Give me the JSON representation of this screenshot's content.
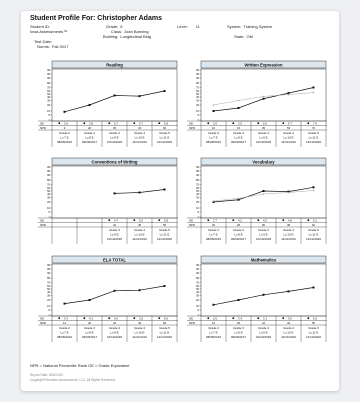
{
  "report": {
    "title": "Student Profile For: Christopher Adams",
    "student_id_label": "Student ID:",
    "assessment_label": "Iowa Assessments™",
    "test_date_label": "Test Date:",
    "norms_label": "Norms:",
    "norms_value": "Fall 2017",
    "grade_label": "Grade:",
    "grade_value": "5",
    "class_label": "Class:",
    "class_value": "Joan Banning",
    "building_label": "Building:",
    "building_value": "Longitudinal Bldg",
    "level_label": "Level:",
    "level_value": "11",
    "system_label": "System:",
    "system_value": "Training System",
    "state_label": "State:",
    "state_value": "OM"
  },
  "chart_data": [
    {
      "type": "line",
      "title": "Reading",
      "y_axis_ticks": [
        "99",
        "95",
        "90",
        "80",
        "70",
        "60",
        "50",
        "40",
        "30",
        "20",
        "10",
        "5",
        "1"
      ],
      "series": [
        {
          "values": [
            9,
            20,
            45,
            43,
            60
          ]
        }
      ],
      "ge": [
        "2.9",
        "3.8",
        "5.7",
        "5.7",
        "6.8"
      ],
      "npr": [
        "9",
        "20",
        "45",
        "43",
        "60"
      ],
      "columns": [
        {
          "grade": "Grade 2",
          "level": "Lv.7 E",
          "date": "08/08/2016"
        },
        {
          "grade": "Grade 3",
          "level": "Lv.8 E",
          "date": "09/09/2017"
        },
        {
          "grade": "Grade 4",
          "level": "Lv.9 E",
          "date": "10/10/2018"
        },
        {
          "grade": "Grade 4",
          "level": "Lv.10 E",
          "date": "11/11/2019"
        },
        {
          "grade": "Grade 5",
          "level": "Lv.11 E",
          "date": "12/12/2020"
        }
      ]
    },
    {
      "type": "line",
      "title": "Written Expression",
      "y_axis_ticks": [
        "99",
        "95",
        "90",
        "80",
        "70",
        "60",
        "50",
        "40",
        "30",
        "20",
        "10",
        "5",
        "1"
      ],
      "series": [
        {
          "values": [
            10,
            15,
            35,
            53,
            70
          ]
        },
        {
          "values": [
            20,
            30,
            42,
            48,
            55
          ]
        }
      ],
      "ge": [
        "3.0",
        "3.9",
        "5.6",
        "5.7",
        "7.4"
      ],
      "npr": [
        "10",
        "15",
        "35",
        "53",
        "70"
      ],
      "columns": [
        {
          "grade": "Grade 2",
          "level": "Lv.7 E",
          "date": "08/08/2016"
        },
        {
          "grade": "Grade 3",
          "level": "Lv.8 E",
          "date": "09/09/2017"
        },
        {
          "grade": "Grade 4",
          "level": "Lv.9 E",
          "date": "10/10/2018"
        },
        {
          "grade": "Grade 4",
          "level": "Lv.10 E",
          "date": "11/11/2019"
        },
        {
          "grade": "Grade 5",
          "level": "Lv.11 E",
          "date": "12/12/2020"
        }
      ]
    },
    {
      "type": "line",
      "title": "Conventions of Writing",
      "y_axis_ticks": [
        "99",
        "95",
        "90",
        "80",
        "70",
        "60",
        "50",
        "40",
        "30",
        "20",
        "10",
        "5",
        "1"
      ],
      "series": [
        {
          "values": [
            null,
            null,
            42,
            45,
            55
          ]
        }
      ],
      "ge": [
        "",
        "",
        "4.7",
        "5.6",
        "5.8"
      ],
      "npr": [
        "",
        "",
        "42",
        "45",
        "55"
      ],
      "columns": [
        {
          "grade": "",
          "level": "",
          "date": ""
        },
        {
          "grade": "",
          "level": "",
          "date": ""
        },
        {
          "grade": "Grade 3",
          "level": "Lv.9 E",
          "date": "10/10/2018"
        },
        {
          "grade": "Grade 4",
          "level": "Lv.10 E",
          "date": "11/11/2019"
        },
        {
          "grade": "Grade 5",
          "level": "Lv.11 E",
          "date": "12/12/2020"
        }
      ]
    },
    {
      "type": "line",
      "title": "Vocabulary",
      "y_axis_ticks": [
        "99",
        "95",
        "90",
        "80",
        "70",
        "60",
        "50",
        "40",
        "30",
        "20",
        "10",
        "5",
        "1"
      ],
      "series": [
        {
          "values": [
            20,
            25,
            50,
            48,
            62
          ]
        },
        {
          "values": [
            22,
            28,
            40,
            45,
            52
          ]
        }
      ],
      "ge": [
        "2.7",
        "4.2",
        "4.2",
        "4.8",
        "6.1"
      ],
      "npr": [
        "20",
        "25",
        "50",
        "48",
        "62"
      ],
      "columns": [
        {
          "grade": "Grade 2",
          "level": "Lv.7 E",
          "date": "08/08/2016"
        },
        {
          "grade": "Grade 3",
          "level": "Lv.8 E",
          "date": "09/09/2017"
        },
        {
          "grade": "Grade 4",
          "level": "Lv.9 E",
          "date": "10/10/2018"
        },
        {
          "grade": "Grade 4",
          "level": "Lv.10 E",
          "date": "11/11/2019"
        },
        {
          "grade": "Grade 5",
          "level": "Lv.11 E",
          "date": "12/12/2020"
        }
      ]
    },
    {
      "type": "line",
      "title": "ELA TOTAL",
      "y_axis_ticks": [
        "99",
        "95",
        "90",
        "80",
        "70",
        "60",
        "50",
        "40",
        "30",
        "20",
        "10",
        "5",
        "1"
      ],
      "series": [
        {
          "values": [
            14,
            20,
            44,
            46,
            60
          ]
        }
      ],
      "ge": [
        "3.4",
        "4.1",
        "4.0",
        "3.5",
        "6.6"
      ],
      "npr": [
        "14",
        "20",
        "44",
        "46",
        "60"
      ],
      "columns": [
        {
          "grade": "Grade 2",
          "level": "Lv.7 E",
          "date": "08/08/2016"
        },
        {
          "grade": "Grade 3",
          "level": "Lv.8 E",
          "date": "09/09/2017"
        },
        {
          "grade": "Grade 4",
          "level": "Lv.9 E",
          "date": "10/10/2018"
        },
        {
          "grade": "Grade 4",
          "level": "Lv.10 E",
          "date": "11/11/2019"
        },
        {
          "grade": "Grade 5",
          "level": "Lv.11 E",
          "date": "12/12/2020"
        }
      ]
    },
    {
      "type": "line",
      "title": "Mathematics",
      "y_axis_ticks": [
        "99",
        "95",
        "90",
        "80",
        "70",
        "60",
        "50",
        "40",
        "30",
        "20",
        "10",
        "5",
        "1"
      ],
      "series": [
        {
          "values": [
            12,
            20,
            32,
            42,
            55
          ]
        }
      ],
      "ge": [
        "2.6",
        "3.4",
        "3.1",
        "3.6",
        "5.0"
      ],
      "npr": [
        "12",
        "20",
        "32",
        "42",
        "55"
      ],
      "columns": [
        {
          "grade": "Grade 2",
          "level": "Lv.7 E",
          "date": "08/08/2016"
        },
        {
          "grade": "Grade 3",
          "level": "Lv.8 E",
          "date": "09/09/2017"
        },
        {
          "grade": "Grade 4",
          "level": "Lv.9 E",
          "date": "10/10/2018"
        },
        {
          "grade": "Grade 4",
          "level": "Lv.10 E",
          "date": "11/11/2019"
        },
        {
          "grade": "Grade 5",
          "level": "Lv.11 E",
          "date": "12/12/2020"
        }
      ]
    }
  ],
  "legend": "NPR = National Percentile Rank   GE = Grade Equivalent",
  "footer": {
    "report_date": "Report Date:  8/16/2021",
    "copyright": "Copyright Riverside Assessments, LLC. All Rights Reserved."
  },
  "colors": {
    "chart_header": "#dbe6ee",
    "student_line": "#111111",
    "comparison_line": "#a9a9a9"
  }
}
